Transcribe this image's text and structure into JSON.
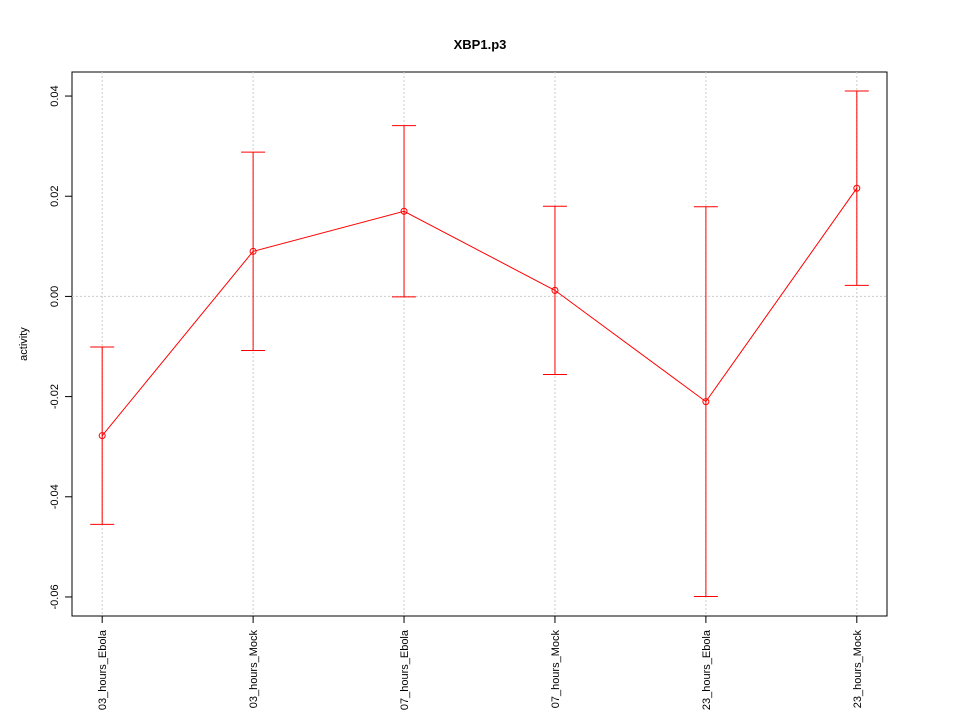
{
  "chart_data": {
    "type": "errorbar-line",
    "title": "XBP1.p3",
    "y_label": "activity",
    "categories": [
      "03_hours_Ebola",
      "03_hours_Mock",
      "07_hours_Ebola",
      "07_hours_Mock",
      "23_hours_Ebola",
      "23_hours_Mock"
    ],
    "series": [
      {
        "color": "#ff0000",
        "values": [
          -0.0278,
          0.009,
          0.017,
          0.0012,
          -0.021,
          0.0216
        ],
        "errors": [
          0.0177,
          0.0198,
          0.0171,
          0.0168,
          0.0389,
          0.0194
        ]
      }
    ],
    "ylim": [
      -0.0638,
      0.0448
    ],
    "yticks": [
      -0.06,
      -0.04,
      -0.02,
      {
        "value": 0,
        "label": "0.00"
      },
      0.02,
      0.04
    ],
    "reference_line": 0,
    "grid": "x"
  }
}
